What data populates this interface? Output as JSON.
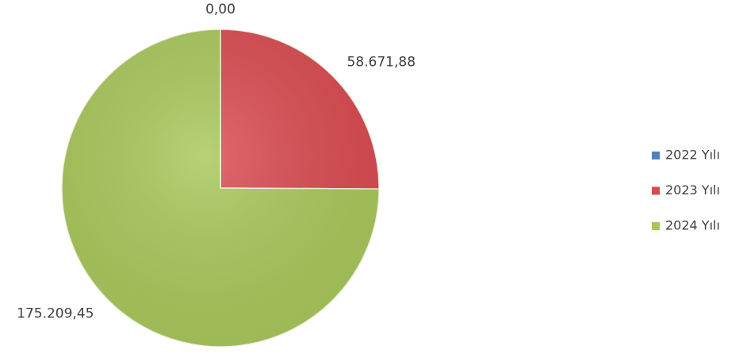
{
  "chart_data": {
    "type": "pie",
    "categories": [
      "2022 Yılı",
      "2023 Yılı",
      "2024 Yılı"
    ],
    "values": [
      0,
      58671.88,
      175209.45
    ],
    "value_labels": [
      "0,00",
      "58.671,88",
      "175.209,45"
    ],
    "colors": [
      "#4f81bd",
      "#d94a4f",
      "#a8c75a"
    ],
    "legend": "right"
  }
}
